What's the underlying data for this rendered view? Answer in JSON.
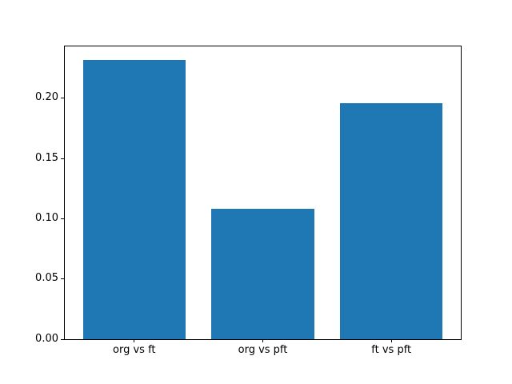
{
  "figure": {
    "background": "#ffffff",
    "frame_color": "#000000",
    "text_color": "#000000"
  },
  "chart_data": {
    "type": "bar",
    "title": "",
    "xlabel": "",
    "ylabel": "",
    "categories": [
      "org vs ft",
      "org vs pft",
      "ft vs pft"
    ],
    "values": [
      0.232,
      0.108,
      0.196
    ],
    "bar_color": "#1f77b4",
    "bar_width": 0.8,
    "xlim": [
      -0.54,
      2.54
    ],
    "ylim": [
      0,
      0.243
    ],
    "ytick_values": [
      0,
      0.05,
      0.1,
      0.15,
      0.2
    ],
    "ytick_labels": [
      "0.00",
      "0.05",
      "0.10",
      "0.15",
      "0.20"
    ],
    "grid": false,
    "legend": "none"
  }
}
